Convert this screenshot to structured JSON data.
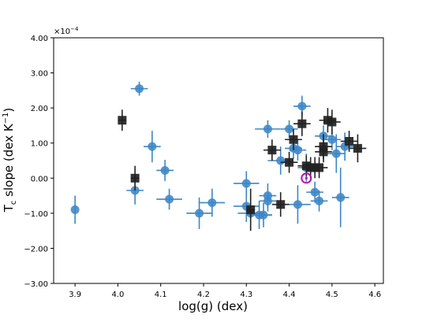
{
  "chart_data": {
    "type": "scatter",
    "xlabel": "log(g) (dex)",
    "ylabel_main": "T",
    "ylabel_sub": "c",
    "ylabel_rest": " slope (dex K",
    "ylabel_sup": "−1",
    "ylabel_end": ")",
    "y_multiplier": "×10",
    "y_multiplier_exp": "−4",
    "xlim": [
      3.85,
      4.62
    ],
    "ylim": [
      -3.0,
      4.0
    ],
    "x_ticks": [
      3.9,
      4.0,
      4.1,
      4.2,
      4.3,
      4.4,
      4.5,
      4.6
    ],
    "x_tick_labels": [
      "3.9",
      "4.0",
      "4.1",
      "4.2",
      "4.3",
      "4.4",
      "4.5",
      "4.6"
    ],
    "y_ticks": [
      -3.0,
      -2.0,
      -1.0,
      0.0,
      1.0,
      2.0,
      3.0,
      4.0
    ],
    "y_tick_labels": [
      "−3.00",
      "−2.00",
      "−1.00",
      "0.00",
      "1.00",
      "2.00",
      "3.00",
      "4.00"
    ],
    "grid": false,
    "colors": {
      "circle_series": "#3d86c6",
      "square_series": "#222222",
      "sun_marker": "#b40fb4",
      "axis": "#000000"
    },
    "series": [
      {
        "marker": "circle",
        "points": [
          {
            "x": 3.9,
            "y": -0.9,
            "xerr": 0.0,
            "yerr": 0.4
          },
          {
            "x": 4.05,
            "y": 2.55,
            "xerr": 0.02,
            "yerr": 0.2
          },
          {
            "x": 4.08,
            "y": 0.9,
            "xerr": 0.02,
            "yerr": 0.45
          },
          {
            "x": 4.04,
            "y": -0.35,
            "xerr": 0.02,
            "yerr": 0.4
          },
          {
            "x": 4.11,
            "y": 0.22,
            "xerr": 0.02,
            "yerr": 0.3
          },
          {
            "x": 4.12,
            "y": -0.6,
            "xerr": 0.03,
            "yerr": 0.3
          },
          {
            "x": 4.19,
            "y": -1.0,
            "xerr": 0.03,
            "yerr": 0.45
          },
          {
            "x": 4.22,
            "y": -0.7,
            "xerr": 0.03,
            "yerr": 0.4
          },
          {
            "x": 4.3,
            "y": -0.15,
            "xerr": 0.03,
            "yerr": 0.35
          },
          {
            "x": 4.3,
            "y": -0.8,
            "xerr": 0.03,
            "yerr": 0.45
          },
          {
            "x": 4.31,
            "y": -1.0,
            "xerr": 0.03,
            "yerr": 0.5
          },
          {
            "x": 4.33,
            "y": -1.05,
            "xerr": 0.03,
            "yerr": 0.4
          },
          {
            "x": 4.34,
            "y": -1.05,
            "xerr": 0.02,
            "yerr": 0.35
          },
          {
            "x": 4.35,
            "y": -0.5,
            "xerr": 0.02,
            "yerr": 0.35
          },
          {
            "x": 4.35,
            "y": -0.65,
            "xerr": 0.02,
            "yerr": 0.3
          },
          {
            "x": 4.35,
            "y": 1.4,
            "xerr": 0.03,
            "yerr": 0.25
          },
          {
            "x": 4.38,
            "y": 0.5,
            "xerr": 0.03,
            "yerr": 0.4
          },
          {
            "x": 4.4,
            "y": 1.4,
            "xerr": 0.02,
            "yerr": 0.25
          },
          {
            "x": 4.41,
            "y": 0.85,
            "xerr": 0.02,
            "yerr": 0.3
          },
          {
            "x": 4.42,
            "y": 0.8,
            "xerr": 0.02,
            "yerr": 0.3
          },
          {
            "x": 4.42,
            "y": -0.75,
            "xerr": 0.03,
            "yerr": 0.55
          },
          {
            "x": 4.43,
            "y": 2.05,
            "xerr": 0.02,
            "yerr": 0.3
          },
          {
            "x": 4.44,
            "y": 0.3,
            "xerr": 0.02,
            "yerr": 0.4
          },
          {
            "x": 4.46,
            "y": -0.4,
            "xerr": 0.02,
            "yerr": 0.3
          },
          {
            "x": 4.47,
            "y": -0.65,
            "xerr": 0.02,
            "yerr": 0.3
          },
          {
            "x": 4.48,
            "y": 1.2,
            "xerr": 0.02,
            "yerr": 0.3
          },
          {
            "x": 4.5,
            "y": 1.1,
            "xerr": 0.02,
            "yerr": 0.3
          },
          {
            "x": 4.51,
            "y": 0.7,
            "xerr": 0.02,
            "yerr": 0.55
          },
          {
            "x": 4.52,
            "y": -0.55,
            "xerr": 0.02,
            "yerr": 0.85
          },
          {
            "x": 4.53,
            "y": 0.9,
            "xerr": 0.02,
            "yerr": 0.4
          }
        ]
      },
      {
        "marker": "square",
        "points": [
          {
            "x": 4.01,
            "y": 1.65,
            "xerr": 0.01,
            "yerr": 0.3
          },
          {
            "x": 4.04,
            "y": 0.0,
            "xerr": 0.01,
            "yerr": 0.35
          },
          {
            "x": 4.31,
            "y": -0.9,
            "xerr": 0.01,
            "yerr": 0.6
          },
          {
            "x": 4.36,
            "y": 0.8,
            "xerr": 0.02,
            "yerr": 0.3
          },
          {
            "x": 4.38,
            "y": -0.75,
            "xerr": 0.02,
            "yerr": 0.35
          },
          {
            "x": 4.4,
            "y": 0.45,
            "xerr": 0.02,
            "yerr": 0.3
          },
          {
            "x": 4.41,
            "y": 1.1,
            "xerr": 0.02,
            "yerr": 0.3
          },
          {
            "x": 4.43,
            "y": 1.55,
            "xerr": 0.02,
            "yerr": 0.35
          },
          {
            "x": 4.44,
            "y": 0.35,
            "xerr": 0.02,
            "yerr": 0.3
          },
          {
            "x": 4.45,
            "y": 0.3,
            "xerr": 0.02,
            "yerr": 0.3
          },
          {
            "x": 4.46,
            "y": 0.3,
            "xerr": 0.02,
            "yerr": 0.3
          },
          {
            "x": 4.47,
            "y": 0.3,
            "xerr": 0.02,
            "yerr": 0.3
          },
          {
            "x": 4.48,
            "y": 0.75,
            "xerr": 0.02,
            "yerr": 0.3
          },
          {
            "x": 4.48,
            "y": 0.9,
            "xerr": 0.02,
            "yerr": 0.35
          },
          {
            "x": 4.49,
            "y": 1.65,
            "xerr": 0.02,
            "yerr": 0.35
          },
          {
            "x": 4.5,
            "y": 1.6,
            "xerr": 0.02,
            "yerr": 0.35
          },
          {
            "x": 4.54,
            "y": 1.05,
            "xerr": 0.02,
            "yerr": 0.3
          },
          {
            "x": 4.56,
            "y": 0.85,
            "xerr": 0.02,
            "yerr": 0.4
          }
        ]
      }
    ],
    "sun_point": {
      "x": 4.44,
      "y": 0.0
    }
  }
}
